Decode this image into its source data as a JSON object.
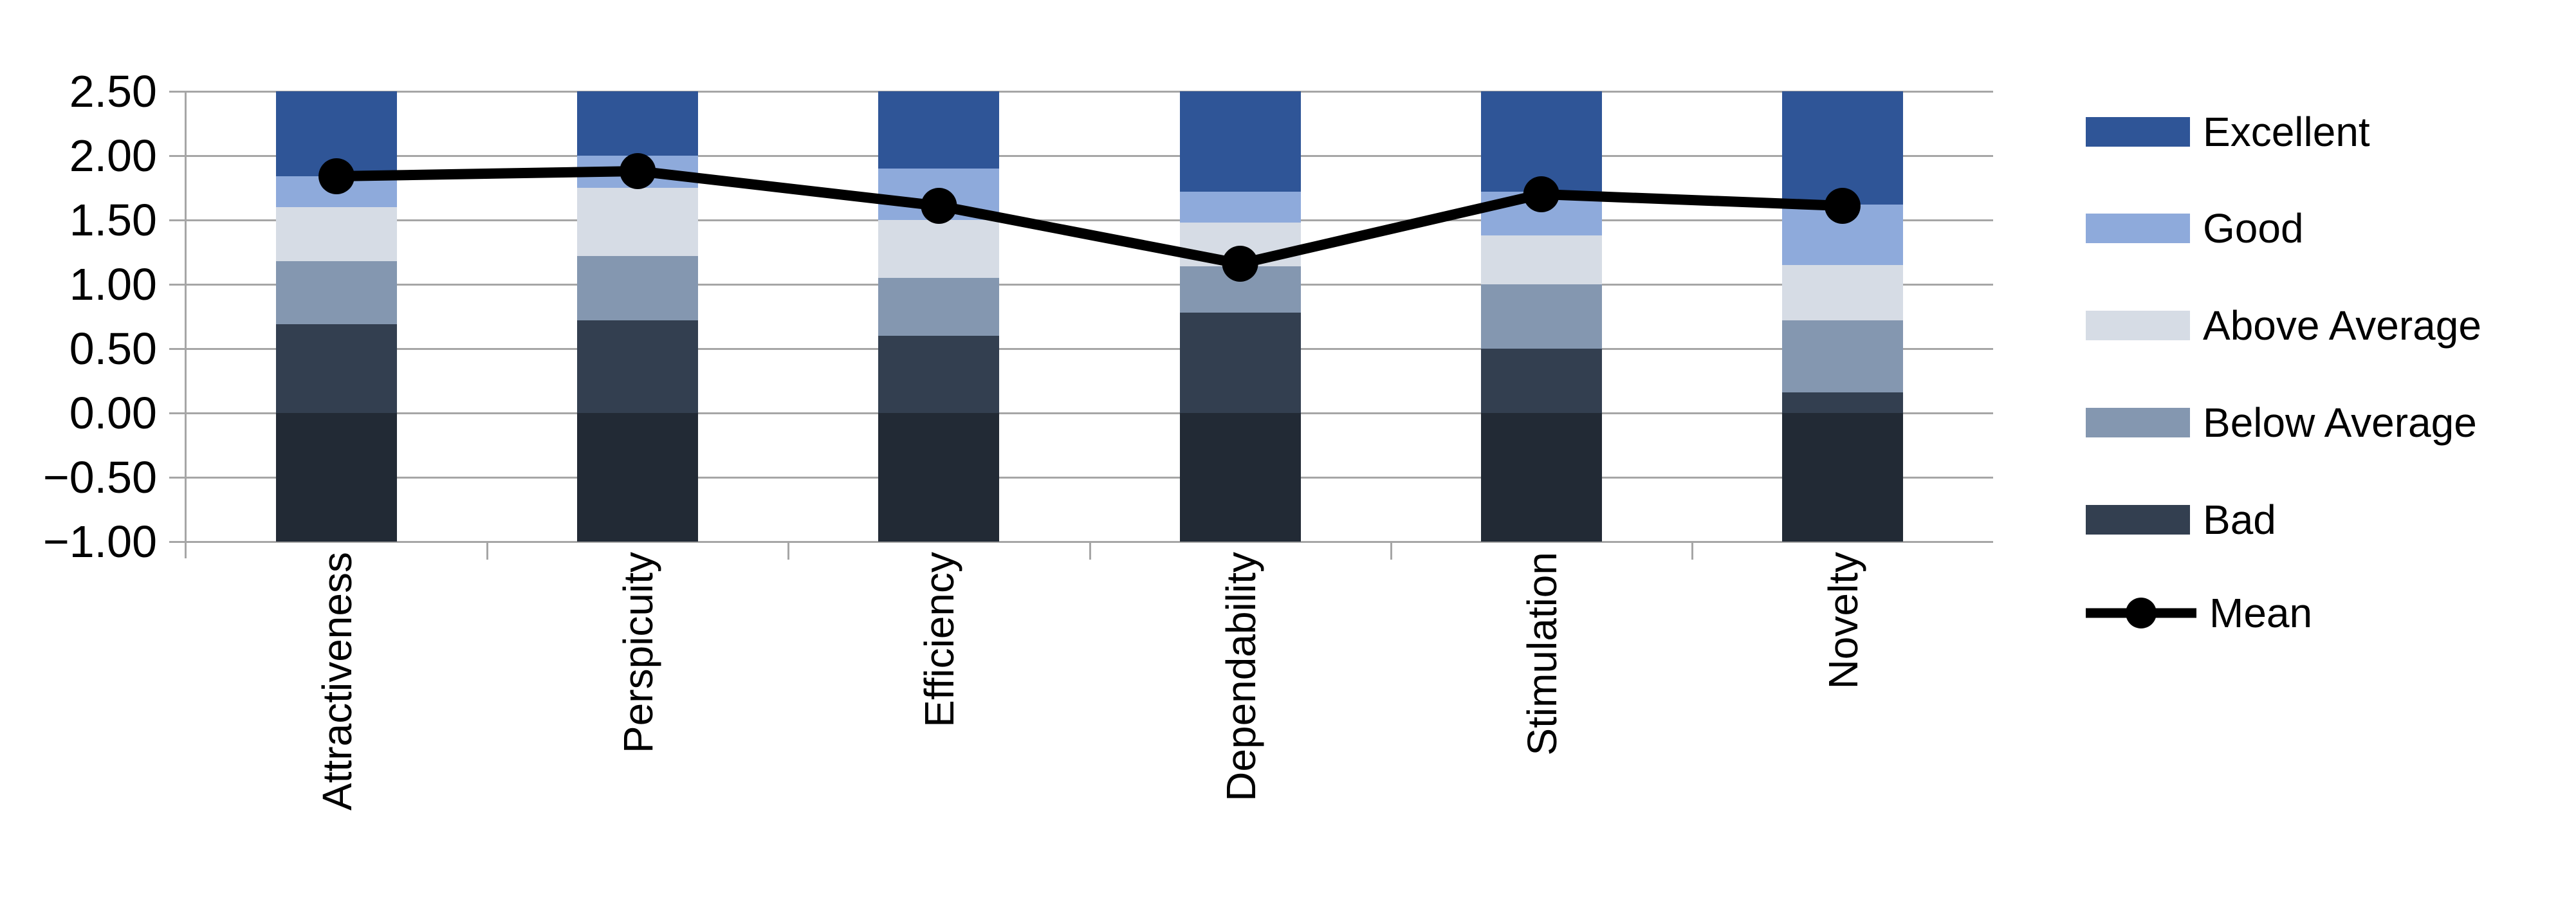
{
  "chart_data": {
    "type": "stacked-bar+line",
    "title": "",
    "xlabel": "",
    "ylabel": "",
    "categories": [
      "Attractiveness",
      "Perspicuity",
      "Efficiency",
      "Dependability",
      "Stimulation",
      "Novelty"
    ],
    "y_axis": {
      "min": -1.0,
      "max": 2.5,
      "step": 0.5,
      "tick_values": [
        2.5,
        2.0,
        1.5,
        1.0,
        0.5,
        0.0,
        -0.5,
        -1.0
      ],
      "tick_labels": [
        "2.50",
        "2.00",
        "1.50",
        "1.00",
        "0.50",
        "0.00",
        "−0.50",
        "−1.00"
      ],
      "grid": true
    },
    "band_order": [
      "base",
      "bad",
      "below_average",
      "above_average",
      "good",
      "excellent"
    ],
    "band_colors": {
      "base": "#222A35",
      "bad": "#333F50",
      "below_average": "#8497B0",
      "above_average": "#D6DCE5",
      "good": "#8EAADB",
      "excellent": "#2F5597"
    },
    "stacks": [
      {
        "category": "Attractiveness",
        "start": -1.0,
        "base_top": 0.0,
        "bad_top": 0.69,
        "below_average_top": 1.18,
        "above_average_top": 1.6,
        "good_top": 1.84,
        "excellent_top": 2.5
      },
      {
        "category": "Perspicuity",
        "start": -1.0,
        "base_top": 0.0,
        "bad_top": 0.72,
        "below_average_top": 1.22,
        "above_average_top": 1.75,
        "good_top": 2.0,
        "excellent_top": 2.5
      },
      {
        "category": "Efficiency",
        "start": -1.0,
        "base_top": 0.0,
        "bad_top": 0.6,
        "below_average_top": 1.05,
        "above_average_top": 1.5,
        "good_top": 1.9,
        "excellent_top": 2.5
      },
      {
        "category": "Dependability",
        "start": -1.0,
        "base_top": 0.0,
        "bad_top": 0.78,
        "below_average_top": 1.14,
        "above_average_top": 1.48,
        "good_top": 1.72,
        "excellent_top": 2.5
      },
      {
        "category": "Stimulation",
        "start": -1.0,
        "base_top": 0.0,
        "bad_top": 0.5,
        "below_average_top": 1.0,
        "above_average_top": 1.38,
        "good_top": 1.72,
        "excellent_top": 2.5
      },
      {
        "category": "Novelty",
        "start": -1.0,
        "base_top": 0.0,
        "bad_top": 0.16,
        "below_average_top": 0.72,
        "above_average_top": 1.15,
        "good_top": 1.62,
        "excellent_top": 2.5
      }
    ],
    "mean_series": {
      "name": "Mean",
      "color": "#000000",
      "values": [
        1.84,
        1.88,
        1.61,
        1.16,
        1.7,
        1.61
      ]
    },
    "legend": {
      "position": "right",
      "entries": [
        {
          "label": "Excellent",
          "marker": "rect",
          "color": "#2F5597"
        },
        {
          "label": "Good",
          "marker": "rect",
          "color": "#8EAADB"
        },
        {
          "label": "Above Average",
          "marker": "rect",
          "color": "#D6DCE5"
        },
        {
          "label": "Below Average",
          "marker": "rect",
          "color": "#8497B0"
        },
        {
          "label": "Bad",
          "marker": "rect",
          "color": "#333F50"
        },
        {
          "label": "Mean",
          "marker": "line-dot",
          "color": "#000000"
        }
      ]
    },
    "style": {
      "gridline_color": "#A6A6A6",
      "axis_color": "#A6A6A6",
      "background": "#FFFFFF",
      "text_color": "#000000"
    }
  }
}
